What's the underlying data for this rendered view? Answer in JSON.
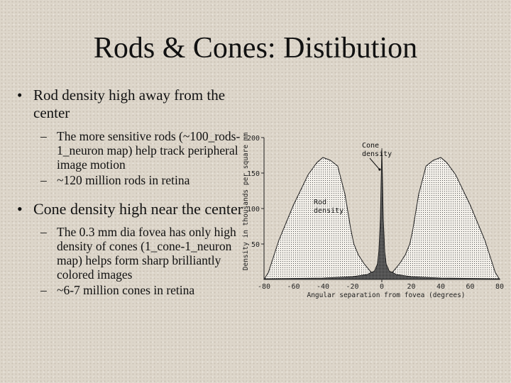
{
  "slide": {
    "title": "Rods & Cones: Distibution",
    "bullets": [
      {
        "text": "Rod density high away from the center",
        "subs": [
          "The more sensitive rods (~100_rods-1_neuron map) help track peripheral image motion",
          "~120 million rods in retina"
        ]
      },
      {
        "text": "Cone density high near the center",
        "subs": [
          "The 0.3 mm dia fovea has only high density of cones (1_cone-1_neuron map) helps form sharp brilliantly colored images",
          "~6-7 million cones in retina"
        ]
      }
    ],
    "bullet_marker": "•",
    "sub_marker": "–"
  },
  "chart_data": {
    "type": "area",
    "xlabel": "Angular separation from fovea (degrees)",
    "ylabel": "Density in thousands per square mm",
    "xlim": [
      -80,
      80
    ],
    "ylim": [
      0,
      200
    ],
    "xticks": [
      -80,
      -60,
      -40,
      -20,
      0,
      20,
      40,
      60,
      80
    ],
    "xtick_labels": [
      "-80",
      "-60",
      "-40",
      "-20",
      "0",
      "20",
      "40",
      "60",
      "80"
    ],
    "yticks": [
      50,
      100,
      150,
      200
    ],
    "ytick_labels": [
      "50",
      "100",
      "150",
      "200"
    ],
    "grid": false,
    "series": [
      {
        "name": "Rod density",
        "x": [
          -80,
          -77,
          -70,
          -60,
          -50,
          -44,
          -40,
          -35,
          -30,
          -25,
          -21,
          -19,
          -16,
          -12,
          -8,
          -5,
          -3,
          -1.5,
          -0.5,
          0,
          0.5,
          1.5,
          3,
          5,
          8,
          12,
          16,
          19,
          21,
          25,
          30,
          35,
          40,
          44,
          50,
          60,
          70,
          77,
          80
        ],
        "values": [
          0,
          10,
          55,
          105,
          148,
          165,
          172,
          168,
          160,
          120,
          70,
          50,
          35,
          22,
          12,
          6,
          2,
          0,
          0,
          0,
          0,
          0,
          2,
          6,
          12,
          22,
          35,
          50,
          70,
          120,
          160,
          168,
          172,
          165,
          148,
          105,
          55,
          10,
          0
        ],
        "color": "#222222"
      },
      {
        "name": "Cone density",
        "x": [
          -80,
          -40,
          -20,
          -10,
          -5,
          -3,
          -2,
          -1,
          -0.5,
          0,
          0.5,
          1,
          2,
          3,
          5,
          10,
          20,
          40,
          80
        ],
        "values": [
          1,
          2,
          4,
          7,
          12,
          22,
          40,
          85,
          140,
          185,
          140,
          85,
          40,
          22,
          12,
          7,
          4,
          2,
          1
        ],
        "color": "#111111"
      }
    ],
    "annotations": [
      {
        "lines": [
          "Cone",
          "density"
        ],
        "arrow_to": [
          -1.5,
          155
        ]
      },
      {
        "lines": [
          "Rod",
          "density"
        ]
      }
    ]
  }
}
